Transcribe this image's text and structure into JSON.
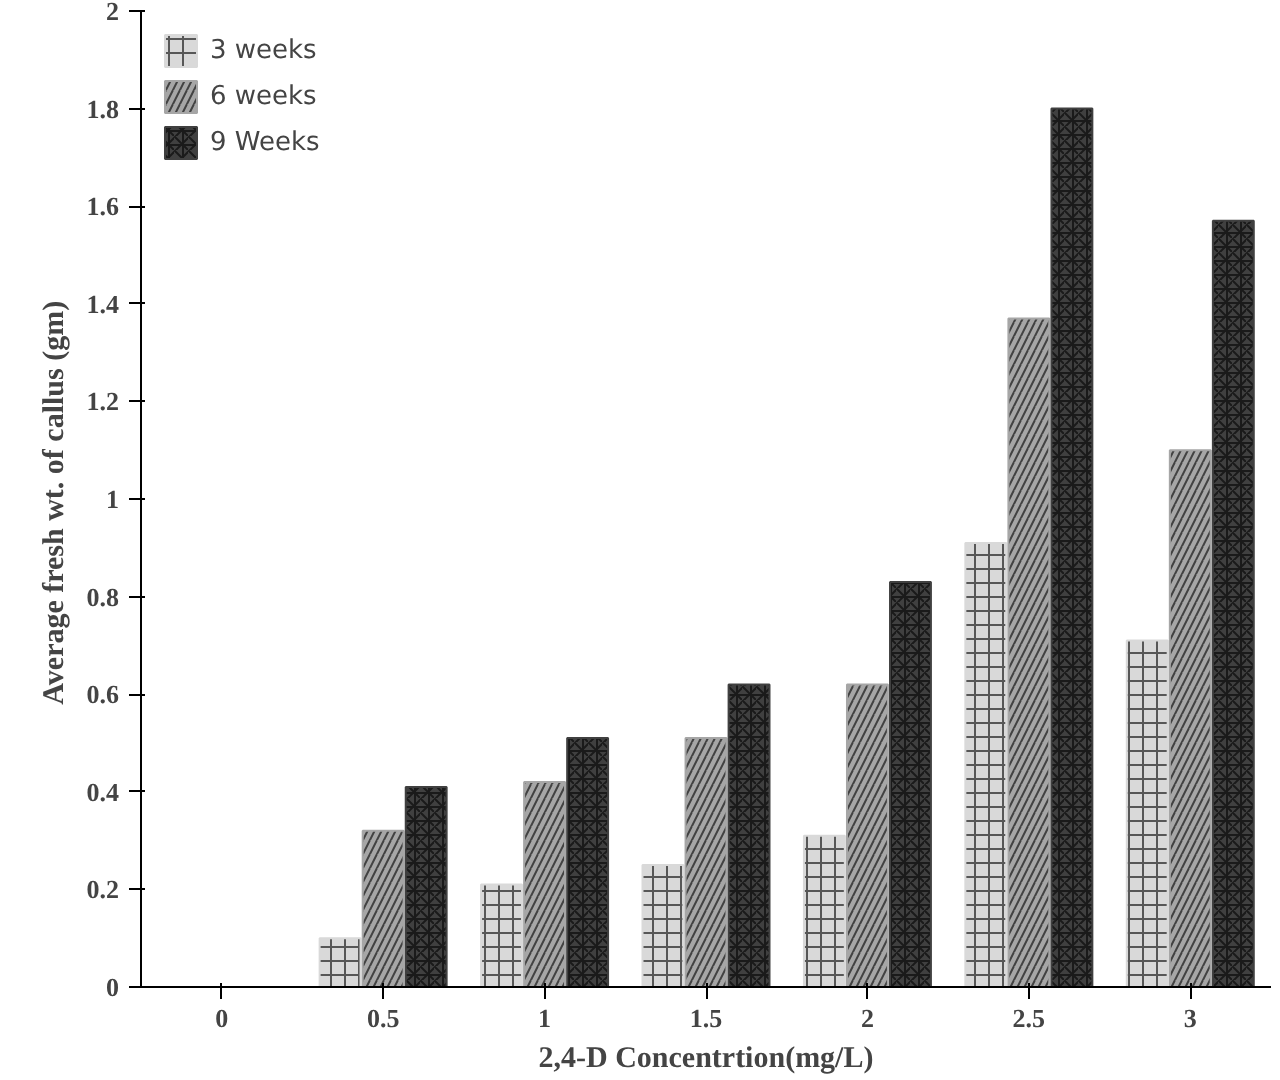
{
  "chart_data": {
    "type": "bar",
    "xlabel": "2,4-D Concentrtion(mg/L)",
    "ylabel": "Average fresh wt. of  callus (gm)",
    "categories": [
      "0",
      "0.5",
      "1",
      "1.5",
      "2",
      "2.5",
      "3"
    ],
    "series": [
      {
        "name": "3 weeks",
        "color": "#d9d9d9",
        "values": [
          0,
          0.1,
          0.21,
          0.25,
          0.31,
          0.91,
          0.71
        ]
      },
      {
        "name": "6 weeks",
        "color": "#a6a6a6",
        "values": [
          0,
          0.32,
          0.42,
          0.51,
          0.62,
          1.37,
          1.1
        ]
      },
      {
        "name": "9 Weeks",
        "color": "#404040",
        "values": [
          0,
          0.41,
          0.51,
          0.62,
          0.83,
          1.8,
          1.57
        ]
      }
    ],
    "ylim": [
      0,
      2
    ],
    "yticks": [
      0,
      0.2,
      0.4,
      0.6,
      0.8,
      1,
      1.2,
      1.4,
      1.6,
      1.8,
      2
    ],
    "grid": false,
    "legend": "top left"
  }
}
